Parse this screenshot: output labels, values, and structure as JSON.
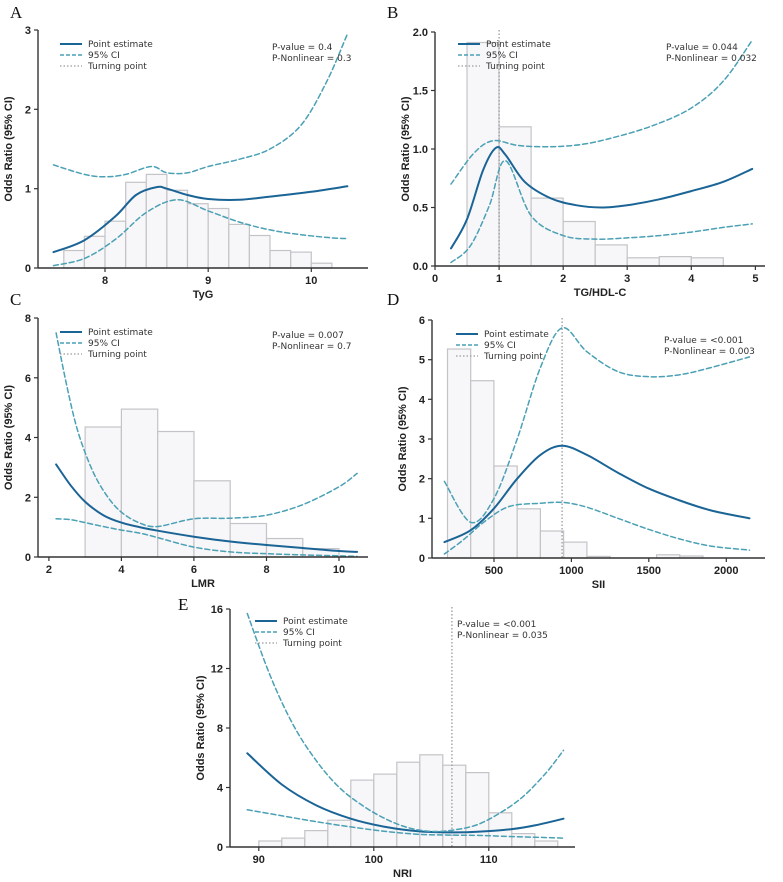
{
  "colors": {
    "main": "#1a6496",
    "ci": "#4aa0b5",
    "turning": "#9a9a9a",
    "bar_fill": "#f7f6f8",
    "bar_stroke": "#c4c4c8"
  },
  "legend": {
    "point_estimate": "Point estimate",
    "ci": "95% CI",
    "turning": "Turning point"
  },
  "chart_data": [
    {
      "panel": "A",
      "type": "line",
      "xlabel": "TyG",
      "ylabel": "Odds Ratio (95% CI)",
      "xlim": [
        7.35,
        10.55
      ],
      "ylim": [
        0,
        3
      ],
      "xticks": [
        "8",
        "9",
        "10"
      ],
      "yticks": [
        "0",
        "1",
        "2",
        "3"
      ],
      "pvalue": "P-value = 0.4",
      "pnonlinear": "P-Nonlinear = 0.3",
      "turning_point": null,
      "bars": {
        "edges": [
          7.6,
          7.8,
          8.0,
          8.2,
          8.4,
          8.6,
          8.8,
          9.0,
          9.2,
          9.4,
          9.6,
          9.8,
          10.0,
          10.2
        ],
        "values": [
          0.22,
          0.4,
          0.59,
          1.08,
          1.18,
          0.98,
          0.81,
          0.75,
          0.55,
          0.41,
          0.22,
          0.2,
          0.06
        ]
      },
      "series": [
        {
          "name": "Point estimate",
          "x": [
            7.5,
            7.8,
            8.1,
            8.3,
            8.5,
            8.6,
            8.8,
            9.0,
            9.3,
            9.6,
            10.0,
            10.35
          ],
          "y": [
            0.2,
            0.35,
            0.65,
            0.92,
            1.02,
            1.0,
            0.92,
            0.87,
            0.86,
            0.9,
            0.96,
            1.03
          ]
        },
        {
          "name": "95% CI upper",
          "x": [
            7.5,
            7.8,
            8.0,
            8.2,
            8.45,
            8.6,
            8.8,
            9.0,
            9.3,
            9.6,
            9.9,
            10.15,
            10.35
          ],
          "y": [
            1.3,
            1.18,
            1.15,
            1.18,
            1.28,
            1.2,
            1.2,
            1.28,
            1.37,
            1.5,
            1.8,
            2.35,
            2.95
          ]
        },
        {
          "name": "95% CI lower",
          "x": [
            7.5,
            7.8,
            8.1,
            8.4,
            8.7,
            9.0,
            9.3,
            9.6,
            9.9,
            10.2,
            10.35
          ],
          "y": [
            0.03,
            0.12,
            0.36,
            0.7,
            0.86,
            0.72,
            0.58,
            0.48,
            0.42,
            0.38,
            0.37
          ]
        }
      ]
    },
    {
      "panel": "B",
      "type": "line",
      "xlabel": "TG/HDL-C",
      "ylabel": "Odds Ratio (95% CI)",
      "xlim": [
        0,
        5.15
      ],
      "ylim": [
        0,
        2.0
      ],
      "xticks": [
        "0",
        "1",
        "2",
        "3",
        "4",
        "5"
      ],
      "yticks": [
        "0.0",
        "0.5",
        "1.0",
        "1.5",
        "2.0"
      ],
      "pvalue": "P-value = 0.044",
      "pnonlinear": "P-Nonlinear = 0.032",
      "turning_point": 1.0,
      "bars": {
        "edges": [
          0.5,
          1.0,
          1.5,
          2.0,
          2.5,
          3.0,
          3.5,
          4.0,
          4.5
        ],
        "values": [
          1.91,
          1.19,
          0.58,
          0.38,
          0.18,
          0.07,
          0.08,
          0.07
        ]
      },
      "series": [
        {
          "name": "Point estimate",
          "x": [
            0.25,
            0.5,
            0.75,
            0.95,
            1.1,
            1.4,
            1.8,
            2.2,
            2.6,
            3.0,
            3.5,
            4.0,
            4.5,
            4.95
          ],
          "y": [
            0.15,
            0.4,
            0.82,
            1.01,
            0.95,
            0.72,
            0.58,
            0.52,
            0.5,
            0.52,
            0.57,
            0.64,
            0.72,
            0.83
          ]
        },
        {
          "name": "95% CI upper",
          "x": [
            0.25,
            0.6,
            0.9,
            1.3,
            1.8,
            2.3,
            2.8,
            3.4,
            4.0,
            4.5,
            4.95
          ],
          "y": [
            0.7,
            0.96,
            1.07,
            1.03,
            1.02,
            1.04,
            1.1,
            1.2,
            1.35,
            1.58,
            1.93
          ]
        },
        {
          "name": "95% CI lower",
          "x": [
            0.25,
            0.55,
            0.85,
            1.1,
            1.5,
            2.0,
            2.5,
            3.0,
            3.5,
            4.0,
            4.5,
            4.95
          ],
          "y": [
            0.03,
            0.17,
            0.52,
            0.9,
            0.43,
            0.26,
            0.23,
            0.24,
            0.26,
            0.29,
            0.33,
            0.36
          ]
        }
      ]
    },
    {
      "panel": "C",
      "type": "line",
      "xlabel": "LMR",
      "ylabel": "Odds Ratio (95% CI)",
      "xlim": [
        1.7,
        10.8
      ],
      "ylim": [
        0,
        8
      ],
      "xticks": [
        "2",
        "4",
        "6",
        "8",
        "10"
      ],
      "yticks": [
        "0",
        "2",
        "4",
        "6",
        "8"
      ],
      "pvalue": "P-value = 0.007",
      "pnonlinear": "P-Nonlinear = 0.7",
      "turning_point": null,
      "bars": {
        "edges": [
          3,
          4,
          5,
          6,
          7,
          8,
          9,
          10
        ],
        "values": [
          4.35,
          4.95,
          4.2,
          2.55,
          1.12,
          0.62,
          0.28
        ]
      },
      "series": [
        {
          "name": "Point estimate",
          "x": [
            2.2,
            2.6,
            3.0,
            3.5,
            4.0,
            4.5,
            5.0,
            6.0,
            7.0,
            8.0,
            9.0,
            10.0,
            10.5
          ],
          "y": [
            3.1,
            2.4,
            1.85,
            1.4,
            1.15,
            1.0,
            0.88,
            0.68,
            0.52,
            0.4,
            0.3,
            0.2,
            0.17
          ]
        },
        {
          "name": "95% CI upper",
          "x": [
            2.2,
            2.5,
            2.8,
            3.2,
            3.6,
            4.0,
            4.5,
            5.0,
            6.0,
            7.0,
            8.0,
            9.0,
            10.0,
            10.5
          ],
          "y": [
            7.5,
            5.7,
            4.2,
            2.9,
            2.05,
            1.5,
            1.14,
            1.02,
            1.28,
            1.3,
            1.4,
            1.75,
            2.35,
            2.8
          ]
        },
        {
          "name": "95% CI lower",
          "x": [
            2.2,
            2.6,
            3.0,
            3.5,
            4.0,
            4.5,
            5.0,
            6.0,
            7.0,
            8.0,
            9.0,
            10.0,
            10.5
          ],
          "y": [
            1.28,
            1.25,
            1.15,
            1.02,
            0.9,
            0.8,
            0.65,
            0.33,
            0.17,
            0.11,
            0.07,
            0.04,
            0.02
          ]
        }
      ]
    },
    {
      "panel": "D",
      "type": "line",
      "xlabel": "SII",
      "ylabel": "Odds Ratio (95% CI)",
      "xlim": [
        100,
        2250
      ],
      "ylim": [
        0,
        6
      ],
      "xticks": [
        "500",
        "1000",
        "1500",
        "2000"
      ],
      "yticks": [
        "0",
        "1",
        "2",
        "3",
        "4",
        "5",
        "6"
      ],
      "pvalue": "P-value = <0.001",
      "pnonlinear": "P-Nonlinear = 0.003",
      "turning_point": 940,
      "bars": {
        "edges": [
          200,
          350,
          500,
          650,
          800,
          950,
          1100,
          1250,
          1400,
          1550,
          1700,
          1850,
          2000
        ],
        "values": [
          5.27,
          4.47,
          2.32,
          1.24,
          0.68,
          0.4,
          0.04,
          0.0,
          0.0,
          0.08,
          0.05,
          0.0
        ]
      },
      "series": [
        {
          "name": "Point estimate",
          "x": [
            180,
            350,
            500,
            650,
            800,
            940,
            1100,
            1300,
            1500,
            1700,
            1900,
            2150
          ],
          "y": [
            0.4,
            0.7,
            1.25,
            2.0,
            2.6,
            2.83,
            2.6,
            2.15,
            1.75,
            1.45,
            1.2,
            1.0
          ]
        },
        {
          "name": "95% CI upper",
          "x": [
            180,
            350,
            500,
            650,
            800,
            940,
            1100,
            1300,
            1500,
            1700,
            1900,
            2150
          ],
          "y": [
            1.93,
            0.9,
            1.5,
            3.0,
            4.8,
            5.8,
            5.2,
            4.7,
            4.57,
            4.62,
            4.8,
            5.07
          ]
        },
        {
          "name": "95% CI lower",
          "x": [
            180,
            300,
            450,
            600,
            800,
            950,
            1100,
            1300,
            1500,
            1700,
            1900,
            2150
          ],
          "y": [
            0.1,
            0.45,
            0.95,
            1.3,
            1.38,
            1.4,
            1.28,
            1.0,
            0.72,
            0.48,
            0.3,
            0.2
          ]
        }
      ]
    },
    {
      "panel": "E",
      "type": "line",
      "xlabel": "NRI",
      "ylabel": "Odds Ratio (95% CI)",
      "xlim": [
        87.5,
        117.5
      ],
      "ylim": [
        0,
        16
      ],
      "xticks": [
        "90",
        "100",
        "110"
      ],
      "yticks": [
        "0",
        "4",
        "8",
        "12",
        "16"
      ],
      "pvalue": "P-value = <0.001",
      "pnonlinear": "P-Nonlinear = 0.035",
      "turning_point": 106.8,
      "bars": {
        "edges": [
          90,
          92,
          94,
          96,
          98,
          100,
          102,
          104,
          106,
          108,
          110,
          112,
          114,
          116
        ],
        "values": [
          0.4,
          0.6,
          1.1,
          1.8,
          4.5,
          4.9,
          5.7,
          6.2,
          5.5,
          5.0,
          2.3,
          0.9,
          0.4
        ]
      },
      "series": [
        {
          "name": "Point estimate",
          "x": [
            89,
            92,
            95,
            98,
            101,
            104,
            106.8,
            109,
            112,
            114,
            116.5
          ],
          "y": [
            6.3,
            4.2,
            2.8,
            1.9,
            1.35,
            1.05,
            0.98,
            1.02,
            1.2,
            1.45,
            1.9
          ]
        },
        {
          "name": "95% CI upper",
          "x": [
            89,
            91,
            93,
            95,
            97,
            99,
            101,
            103,
            105,
            107,
            109,
            111,
            113,
            115,
            116.5
          ],
          "y": [
            15.7,
            11.5,
            8.2,
            5.8,
            4.0,
            2.8,
            1.9,
            1.3,
            1.05,
            1.15,
            1.5,
            2.3,
            3.4,
            5.0,
            6.5
          ]
        },
        {
          "name": "95% CI lower",
          "x": [
            89,
            92,
            95,
            98,
            101,
            104,
            106.8,
            109,
            112,
            116.5
          ],
          "y": [
            2.5,
            2.1,
            1.7,
            1.35,
            1.05,
            0.85,
            0.8,
            0.78,
            0.7,
            0.6
          ]
        }
      ]
    }
  ]
}
